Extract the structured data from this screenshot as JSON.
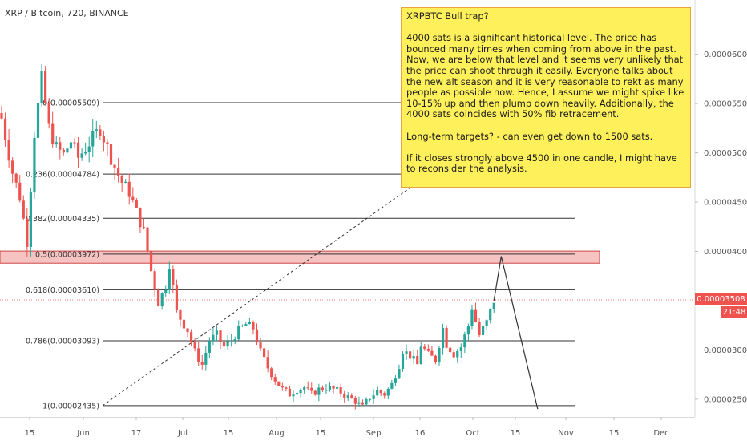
{
  "chart_title": "XRP / Bitcoin, 720, BINANCE",
  "note": {
    "title": "XRPBTC Bull trap?",
    "paragraph_1": "4000 sats is a significant historical level. The price has bounced many times when coming from above in the past. Now, we are below that level and it seems very unlikely that the price can shoot through it easily. Everyone talks about the new alt season and it is very reasonable to rekt as many people as possible now. Hence, I assume we might spike like 10-15% up and then plump down heavily. Additionally, the 4000 sats coincides with 50% fib retracement.",
    "paragraph_2": "Long-term targets? - can even get down to 1500 sats.",
    "paragraph_3": "If it closes strongly above 4500 in one candle, I might have to reconsider the analysis."
  },
  "current_price": {
    "price_label": "0.00003508",
    "countdown_label": "21:48",
    "value": 3.508e-05
  },
  "colors": {
    "up": "#26a69a",
    "down": "#ef5350",
    "fib_line": "#333333",
    "zone_fill": "#f6c3c3",
    "zone_border": "#d04545",
    "note_bg": "#fdf05a"
  },
  "chart_data": {
    "type": "candlestick",
    "title": "XRP / Bitcoin, 720, BINANCE",
    "ylim": [
      2.32e-05,
      6.55e-05
    ],
    "y_ticks": [
      {
        "value": 2.5e-05,
        "label": "0.00002500"
      },
      {
        "value": 3e-05,
        "label": "0.00003000"
      },
      {
        "value": 3.5e-05,
        "label": "0.00003500"
      },
      {
        "value": 4e-05,
        "label": "0.00004000"
      },
      {
        "value": 4.5e-05,
        "label": "0.00004500"
      },
      {
        "value": 5e-05,
        "label": "0.00005000"
      },
      {
        "value": 5.5e-05,
        "label": "0.00005500"
      },
      {
        "value": 6e-05,
        "label": "0.00006000"
      }
    ],
    "x_ticks": [
      "15",
      "Jun",
      "17",
      "Jul",
      "15",
      "Aug",
      "15",
      "Sep",
      "16",
      "Oct",
      "15",
      "Nov",
      "15",
      "Dec"
    ],
    "fib_levels": [
      {
        "label": "0(0.00005509)",
        "value": 5.509e-05
      },
      {
        "label": "0.236(0.00004784)",
        "value": 4.784e-05
      },
      {
        "label": "0.382(0.00004335)",
        "value": 4.335e-05
      },
      {
        "label": "0.5(0.00003972)",
        "value": 3.972e-05
      },
      {
        "label": "0.618(0.00003610)",
        "value": 3.61e-05
      },
      {
        "label": "0.786(0.00003093)",
        "value": 3.093e-05
      },
      {
        "label": "1(0.00002435)",
        "value": 2.435e-05
      }
    ],
    "resistance_zone": [
      3.88e-05,
      4.003e-05
    ],
    "close_path": [
      [
        0,
        5.35e-05
      ],
      [
        3,
        4.8e-05
      ],
      [
        5,
        4.55e-05
      ],
      [
        7,
        4.1e-05
      ],
      [
        9,
        5.2e-05
      ],
      [
        11,
        5.75e-05
      ],
      [
        13,
        5.25e-05
      ],
      [
        15,
        5.05e-05
      ],
      [
        17,
        4.98e-05
      ],
      [
        19,
        5.12e-05
      ],
      [
        21,
        4.95e-05
      ],
      [
        23,
        5.05e-05
      ],
      [
        25,
        5.15e-05
      ],
      [
        27,
        5.25e-05
      ],
      [
        29,
        5.05e-05
      ],
      [
        31,
        4.85e-05
      ],
      [
        33,
        4.7e-05
      ],
      [
        35,
        4.6e-05
      ],
      [
        37,
        4.4e-05
      ],
      [
        39,
        4.2e-05
      ],
      [
        41,
        3.8e-05
      ],
      [
        43,
        3.48e-05
      ],
      [
        45,
        3.65e-05
      ],
      [
        46,
        3.88e-05
      ],
      [
        48,
        3.38e-05
      ],
      [
        51,
        3.2e-05
      ],
      [
        53,
        2.98e-05
      ],
      [
        55,
        2.85e-05
      ],
      [
        57,
        3.1e-05
      ],
      [
        59,
        3.15e-05
      ],
      [
        61,
        3.03e-05
      ],
      [
        63,
        3.1e-05
      ],
      [
        65,
        3.2e-05
      ],
      [
        67,
        3.26e-05
      ],
      [
        69,
        3.22e-05
      ],
      [
        71,
        2.98e-05
      ],
      [
        73,
        2.82e-05
      ],
      [
        75,
        2.7e-05
      ],
      [
        77,
        2.6e-05
      ],
      [
        79,
        2.55e-05
      ],
      [
        81,
        2.6e-05
      ],
      [
        83,
        2.62e-05
      ],
      [
        85,
        2.55e-05
      ],
      [
        87,
        2.6e-05
      ],
      [
        89,
        2.62e-05
      ],
      [
        91,
        2.6e-05
      ],
      [
        93,
        2.57e-05
      ],
      [
        95,
        2.52e-05
      ],
      [
        97,
        2.48e-05
      ],
      [
        99,
        2.42e-05
      ],
      [
        101,
        2.52e-05
      ],
      [
        103,
        2.58e-05
      ],
      [
        105,
        2.55e-05
      ],
      [
        107,
        2.65e-05
      ],
      [
        109,
        2.85e-05
      ],
      [
        110,
        3e-05
      ],
      [
        112,
        2.94e-05
      ],
      [
        114,
        2.85e-05
      ],
      [
        115,
        3.05e-05
      ],
      [
        117,
        2.95e-05
      ],
      [
        119,
        2.9e-05
      ],
      [
        121,
        3.22e-05
      ],
      [
        122,
        3.06e-05
      ],
      [
        124,
        2.96e-05
      ],
      [
        126,
        3.03e-05
      ],
      [
        128,
        3.25e-05
      ],
      [
        129,
        3.43e-05
      ],
      [
        131,
        3.15e-05
      ],
      [
        133,
        3.28e-05
      ],
      [
        135,
        3.5e-05
      ]
    ],
    "projection": {
      "points": [
        [
          135,
          3.5e-05
        ],
        [
          137,
          3.95e-05
        ],
        [
          147,
          2.4e-05
        ]
      ]
    }
  }
}
